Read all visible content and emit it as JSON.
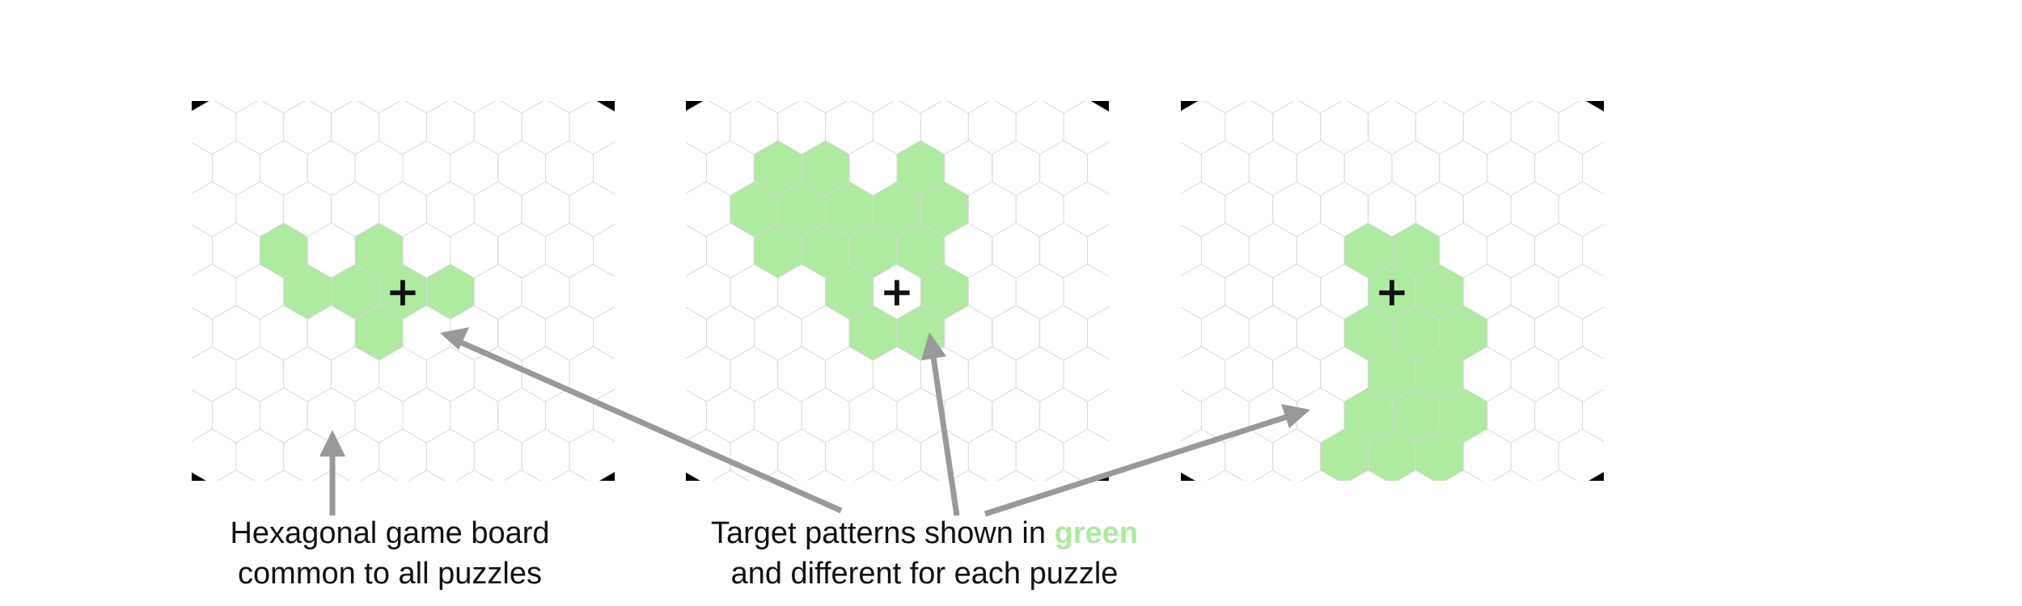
{
  "colors": {
    "board_bg": "#000000",
    "cell_empty": "#ffffff",
    "cell_target": "#aeeaa0",
    "cell_border": "#d9d9d9",
    "arrow": "#999999",
    "highlight_text": "#aeeaa0"
  },
  "center_marker": "+",
  "boards": [
    {
      "name": "puzzle-1",
      "target_cells": [
        [
          -2,
          -1
        ],
        [
          -2,
          0
        ],
        [
          -1,
          0
        ],
        [
          -1,
          1
        ],
        [
          0,
          -1
        ],
        [
          0,
          0
        ],
        [
          1,
          0
        ]
      ]
    },
    {
      "name": "puzzle-2",
      "target_cells": [
        [
          -1,
          -3
        ],
        [
          0,
          -3
        ],
        [
          -2,
          -2
        ],
        [
          -1,
          -2
        ],
        [
          0,
          -2
        ],
        [
          2,
          -3
        ],
        [
          2,
          -2
        ],
        [
          1,
          -2
        ],
        [
          -2,
          -1
        ],
        [
          -1,
          -1
        ],
        [
          0,
          -1
        ],
        [
          1,
          -1
        ],
        [
          -1,
          0
        ],
        [
          1,
          0
        ],
        [
          -1,
          1
        ],
        [
          0,
          1
        ]
      ]
    },
    {
      "name": "puzzle-3",
      "target_cells": [
        [
          0,
          -1
        ],
        [
          0,
          0
        ],
        [
          1,
          -1
        ],
        [
          1,
          0
        ],
        [
          -1,
          1
        ],
        [
          0,
          1
        ],
        [
          1,
          1
        ],
        [
          -1,
          2
        ],
        [
          0,
          2
        ],
        [
          -2,
          3
        ],
        [
          -1,
          3
        ],
        [
          0,
          3
        ],
        [
          -3,
          4
        ],
        [
          -2,
          4
        ],
        [
          -1,
          4
        ]
      ]
    }
  ],
  "captions": {
    "left_line1": "Hexagonal game board",
    "left_line2": "common to all puzzles",
    "right_line1_prefix": "Target patterns shown in ",
    "right_line1_highlight": "green",
    "right_line2": "and different for each puzzle"
  }
}
